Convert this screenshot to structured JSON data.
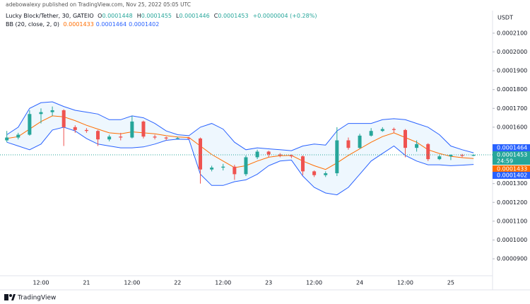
{
  "publisher": "adebowalexy published on TradingView.com, Nov 25, 2022 05:05 UTC",
  "brand": "TradingView",
  "chart_data": {
    "type": "candlestick",
    "symbol": "Lucky Block/Tether, 30, GATEIO",
    "currency": "USDT",
    "ohlc_legend": [
      {
        "label": "O",
        "value": 0.0001448
      },
      {
        "label": "H",
        "value": 0.0001455
      },
      {
        "label": "L",
        "value": 0.0001446
      },
      {
        "label": "C",
        "value": 0.0001453
      }
    ],
    "change": "+0.0000004 (+0.28%)",
    "countdown": "24:59",
    "up_color": "#26a69a",
    "down_color": "#ef5350",
    "categories": [
      null,
      null,
      null,
      "12:00",
      null,
      null,
      null,
      "21",
      null,
      null,
      null,
      "12:00",
      null,
      null,
      null,
      "22",
      null,
      null,
      null,
      "12:00",
      null,
      null,
      null,
      "23",
      null,
      null,
      null,
      "12:00",
      null,
      null,
      null,
      "24",
      null,
      null,
      null,
      "12:00",
      null,
      null,
      null,
      "25",
      null,
      null
    ],
    "open": [
      0.000153,
      0.0001545,
      0.000156,
      0.000167,
      0.000168,
      0.000169,
      0.00016,
      0.0001585,
      0.000158,
      0.0001535,
      0.000155,
      0.0001545,
      0.000163,
      0.000155,
      0.0001545,
      0.000154,
      0.0001542,
      0.000154,
      0.0001375,
      0.0001385,
      0.000139,
      0.000135,
      0.000144,
      0.000147,
      0.0001455,
      0.000145,
      0.0001445,
      0.0001365,
      0.0001345,
      0.0001355,
      0.000153,
      0.000149,
      0.0001555,
      0.000158,
      0.000159,
      0.0001585,
      0.000149,
      0.000151,
      0.000143,
      0.0001445,
      0.0001453,
      0.0001448
    ],
    "high": [
      0.000158,
      0.000157,
      0.000169,
      0.00017,
      0.000171,
      0.0001695,
      0.000161,
      0.0001595,
      0.0001585,
      0.000156,
      0.000157,
      0.000166,
      0.0001635,
      0.000156,
      0.000155,
      0.0001548,
      0.0001548,
      0.0001545,
      0.0001395,
      0.0001405,
      0.00014,
      0.000145,
      0.000148,
      0.0001475,
      0.0001462,
      0.0001455,
      0.000145,
      0.000137,
      0.0001365,
      0.00016,
      0.0001545,
      0.0001565,
      0.0001595,
      0.00016,
      0.0001598,
      0.000159,
      0.000153,
      0.0001515,
      0.0001455,
      0.0001455,
      0.0001458,
      0.0001455
    ],
    "low": [
      0.000152,
      0.0001535,
      0.0001555,
      0.000162,
      0.000166,
      0.00015,
      0.000157,
      0.000157,
      0.00015,
      0.0001525,
      0.000153,
      0.000154,
      0.000154,
      0.0001535,
      0.000153,
      0.0001535,
      0.0001535,
      0.00013,
      0.0001365,
      0.000137,
      0.000132,
      0.000134,
      0.000143,
      0.000144,
      0.000144,
      0.0001435,
      0.0001345,
      0.0001335,
      0.0001335,
      0.000134,
      0.000148,
      0.0001485,
      0.000155,
      0.0001575,
      0.000157,
      0.000144,
      0.000147,
      0.000142,
      0.0001425,
      0.0001425,
      0.000144,
      0.0001446
    ],
    "close": [
      0.0001545,
      0.000156,
      0.000167,
      0.000168,
      0.000169,
      0.00016,
      0.0001585,
      0.000158,
      0.0001535,
      0.000155,
      0.0001545,
      0.000163,
      0.000155,
      0.0001545,
      0.000154,
      0.0001542,
      0.000154,
      0.0001375,
      0.0001385,
      0.000139,
      0.000135,
      0.000144,
      0.000147,
      0.0001455,
      0.000145,
      0.0001445,
      0.0001365,
      0.0001345,
      0.0001355,
      0.000153,
      0.000149,
      0.0001555,
      0.000158,
      0.000159,
      0.0001585,
      0.000149,
      0.000151,
      0.000143,
      0.0001445,
      0.0001453,
      0.0001448,
      0.0001453
    ],
    "bollinger": {
      "name": "BB (20, close, 2, 0)",
      "band_color": "#2962ff",
      "basis_color": "#ff6d00",
      "fill_color": "#2196f3",
      "upper": [
        0.000156,
        0.00016,
        0.00017,
        0.000173,
        0.0001735,
        0.000171,
        0.000169,
        0.000168,
        0.000167,
        0.000164,
        0.000164,
        0.000166,
        0.000165,
        0.000162,
        0.000158,
        0.000156,
        0.0001555,
        0.00016,
        0.000162,
        0.000159,
        0.000152,
        0.000148,
        0.000149,
        0.0001485,
        0.000148,
        0.0001475,
        0.00015,
        0.000151,
        0.0001505,
        0.000158,
        0.000162,
        0.000162,
        0.000162,
        0.000164,
        0.0001645,
        0.000164,
        0.000162,
        0.00016,
        0.000156,
        0.00015,
        0.000148,
        0.0001464
      ],
      "basis": [
        0.000154,
        0.000155,
        0.000159,
        0.000163,
        0.000166,
        0.0001655,
        0.0001635,
        0.000161,
        0.000159,
        0.000157,
        0.0001565,
        0.0001575,
        0.000157,
        0.0001565,
        0.0001555,
        0.0001548,
        0.0001545,
        0.00015,
        0.0001455,
        0.000142,
        0.0001385,
        0.0001395,
        0.000142,
        0.000144,
        0.0001448,
        0.000145,
        0.000142,
        0.0001395,
        0.0001375,
        0.000141,
        0.000145,
        0.0001485,
        0.000152,
        0.000155,
        0.000157,
        0.0001545,
        0.000152,
        0.000148,
        0.000146,
        0.0001445,
        0.0001438,
        0.0001433
      ],
      "lower": [
        0.000152,
        0.00015,
        0.000148,
        0.000151,
        0.0001585,
        0.00016,
        0.000158,
        0.000154,
        0.000151,
        0.00015,
        0.000149,
        0.000149,
        0.0001495,
        0.000151,
        0.000153,
        0.0001536,
        0.0001535,
        0.000135,
        0.000129,
        0.000129,
        0.000131,
        0.000132,
        0.000135,
        0.0001395,
        0.000142,
        0.0001425,
        0.000134,
        0.000128,
        0.000125,
        0.000124,
        0.000128,
        0.000135,
        0.000142,
        0.000146,
        0.00015,
        0.000145,
        0.000142,
        0.00014,
        0.00014,
        0.0001395,
        0.0001398,
        0.0001402
      ]
    },
    "ylim": [
      8.1e-05,
      0.000222
    ],
    "yticks": [
      {
        "value": 0.00021,
        "label": "0.0002100"
      },
      {
        "value": 0.0002,
        "label": "0.0002000"
      },
      {
        "value": 0.00019,
        "label": "0.0001900"
      },
      {
        "value": 0.00018,
        "label": "0.0001800"
      },
      {
        "value": 0.00017,
        "label": "0.0001700"
      },
      {
        "value": 0.00016,
        "label": "0.0001600"
      },
      {
        "value": 0.00013,
        "label": "0.0001300"
      },
      {
        "value": 0.00012,
        "label": "0.0001200"
      },
      {
        "value": 0.00011,
        "label": "0.0001100"
      },
      {
        "value": 0.0001,
        "label": "0.0001000"
      },
      {
        "value": 9e-05,
        "label": "0.0000900"
      }
    ],
    "grid": false
  }
}
